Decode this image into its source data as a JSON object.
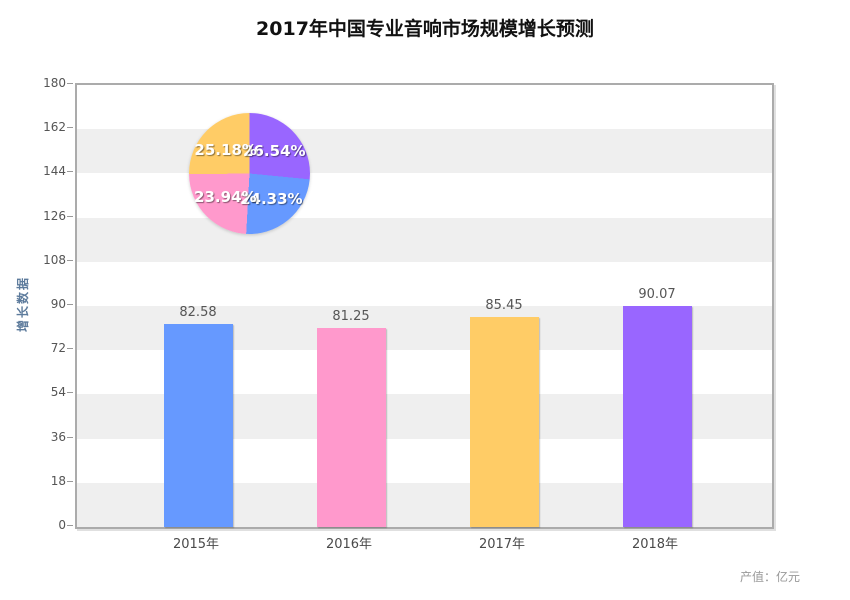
{
  "title": "2017年中国专业音响市场规模增长预测",
  "footnote": "产值：亿元",
  "chart_data": [
    {
      "type": "bar",
      "title": "2017年中国专业音响市场规模增长预测",
      "categories": [
        "2015年",
        "2016年",
        "2017年",
        "2018年"
      ],
      "values": [
        82.58,
        81.25,
        85.45,
        90.07
      ],
      "value_labels": [
        "82.58",
        "81.25",
        "85.45",
        "90.07"
      ],
      "colors": [
        "#6699FF",
        "#FF99CC",
        "#FFCC66",
        "#9966FF"
      ],
      "xlabel": "",
      "ylabel": "增长数据",
      "ylim": [
        0,
        180
      ],
      "yticks": [
        0,
        18,
        36,
        54,
        72,
        90,
        108,
        126,
        144,
        162,
        180
      ],
      "grid": "alternating horizontal bands",
      "band_colors": [
        "#FFFFFF",
        "#EFEFEF"
      ],
      "unit_note": "产值：亿元",
      "legend_position": "none"
    },
    {
      "type": "pie",
      "labels": [
        "26.54%",
        "24.33%",
        "23.94%",
        "25.18%"
      ],
      "values": [
        26.54,
        24.33,
        23.94,
        25.18
      ],
      "colors": [
        "#9966FF",
        "#6699FF",
        "#FF99CC",
        "#FFCC66"
      ],
      "start_angle_deg": 0,
      "direction": "clockwise",
      "legend_position": "none"
    }
  ]
}
